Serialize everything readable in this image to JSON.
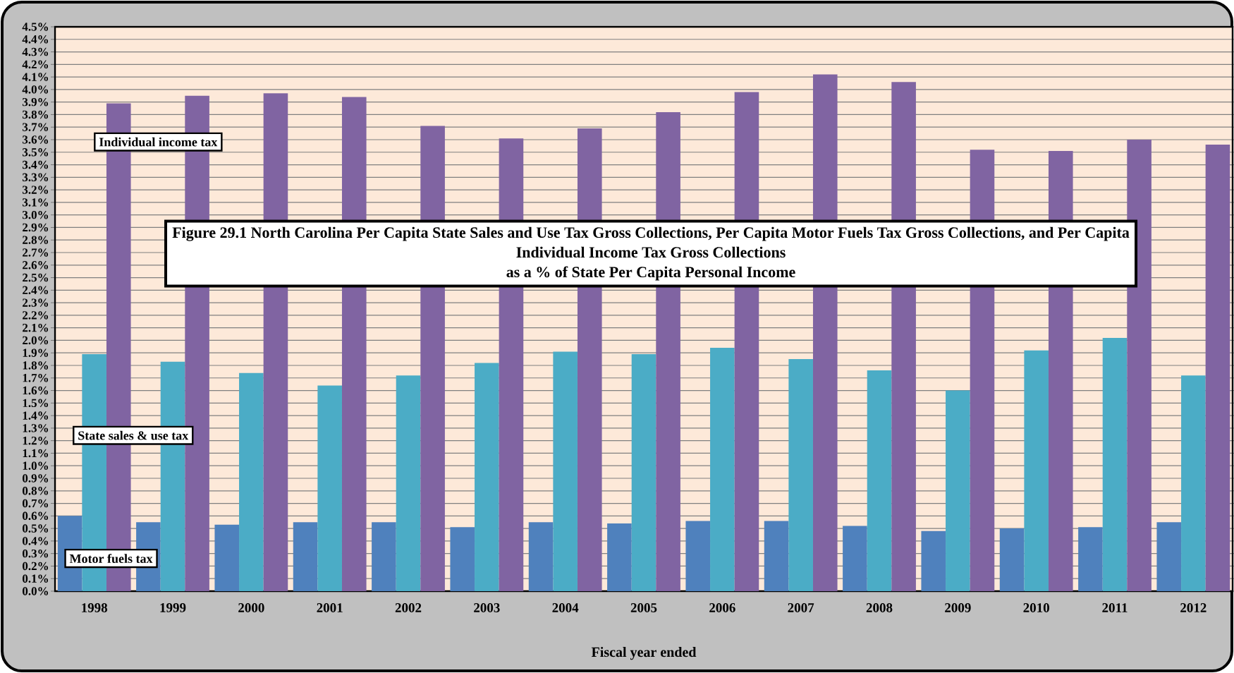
{
  "chart_data": {
    "type": "bar",
    "title": "Figure 29.1 North Carolina Per Capita State Sales and Use Tax Gross Collections, Per Capita Motor Fuels Tax Gross Collections, and Per Capita Individual Income Tax Gross Collections",
    "subtitle": "as a % of State Per Capita Personal Income",
    "xlabel": "Fiscal year ended",
    "categories": [
      "1998",
      "1999",
      "2000",
      "2001",
      "2002",
      "2003",
      "2004",
      "2005",
      "2006",
      "2007",
      "2008",
      "2009",
      "2010",
      "2011",
      "2012"
    ],
    "series": [
      {
        "name": "Motor fuels tax",
        "color": "#4f81bd",
        "values": [
          0.6,
          0.55,
          0.53,
          0.55,
          0.55,
          0.51,
          0.55,
          0.54,
          0.56,
          0.56,
          0.52,
          0.48,
          0.5,
          0.51,
          0.55
        ]
      },
      {
        "name": "State sales & use tax",
        "color": "#4bacc6",
        "values": [
          1.89,
          1.83,
          1.74,
          1.64,
          1.72,
          1.82,
          1.91,
          1.89,
          1.94,
          1.85,
          1.76,
          1.6,
          1.92,
          2.02,
          1.72
        ]
      },
      {
        "name": "Individual income tax",
        "color": "#8064a2",
        "values": [
          3.89,
          3.95,
          3.97,
          3.94,
          3.71,
          3.61,
          3.69,
          3.82,
          3.98,
          4.12,
          4.06,
          3.52,
          3.51,
          3.6,
          3.56
        ]
      }
    ],
    "ylim": [
      0,
      4.5
    ],
    "yticks": [
      {
        "value": 0,
        "label": "0.0%"
      },
      {
        "value": 0.1,
        "label": "0.1%"
      },
      {
        "value": 0.2,
        "label": "0.2%"
      },
      {
        "value": 0.3,
        "label": "0.3%"
      },
      {
        "value": 0.4,
        "label": "0.4%"
      },
      {
        "value": 0.5,
        "label": "0.5%"
      },
      {
        "value": 0.6,
        "label": "0.6%"
      },
      {
        "value": 0.7,
        "label": "0.7%"
      },
      {
        "value": 0.8,
        "label": "0.8%"
      },
      {
        "value": 0.9,
        "label": "0.9%"
      },
      {
        "value": 1.0,
        "label": "1.0%"
      },
      {
        "value": 1.1,
        "label": "1.1%"
      },
      {
        "value": 1.2,
        "label": "1.2%"
      },
      {
        "value": 1.3,
        "label": "1.3%"
      },
      {
        "value": 1.4,
        "label": "1.4%"
      },
      {
        "value": 1.5,
        "label": "1.5%"
      },
      {
        "value": 1.6,
        "label": "1.6%"
      },
      {
        "value": 1.7,
        "label": "1.7%"
      },
      {
        "value": 1.8,
        "label": "1.8%"
      },
      {
        "value": 1.9,
        "label": "1.9%"
      },
      {
        "value": 2.0,
        "label": "2.0%"
      },
      {
        "value": 2.1,
        "label": "2.1%"
      },
      {
        "value": 2.2,
        "label": "2.2%"
      },
      {
        "value": 2.3,
        "label": "2.3%"
      },
      {
        "value": 2.4,
        "label": "2.4%"
      },
      {
        "value": 2.5,
        "label": "2.5%"
      },
      {
        "value": 2.6,
        "label": "2.6%"
      },
      {
        "value": 2.7,
        "label": "2.7%"
      },
      {
        "value": 2.8,
        "label": "2.8%"
      },
      {
        "value": 2.9,
        "label": "2.9%"
      },
      {
        "value": 3.0,
        "label": "3.0%"
      },
      {
        "value": 3.1,
        "label": "3.1%"
      },
      {
        "value": 3.2,
        "label": "3.2%"
      },
      {
        "value": 3.3,
        "label": "3.3%"
      },
      {
        "value": 3.4,
        "label": "3.4%"
      },
      {
        "value": 3.5,
        "label": "3.5%"
      },
      {
        "value": 3.6,
        "label": "3.6%"
      },
      {
        "value": 3.7,
        "label": "3.7%"
      },
      {
        "value": 3.8,
        "label": "3.8%"
      },
      {
        "value": 3.9,
        "label": "3.9%"
      },
      {
        "value": 4.0,
        "label": "4.0%"
      },
      {
        "value": 4.1,
        "label": "4.1%"
      },
      {
        "value": 4.2,
        "label": "4.2%"
      },
      {
        "value": 4.3,
        "label": "4.3%"
      },
      {
        "value": 4.4,
        "label": "4.4%"
      },
      {
        "value": 4.5,
        "label": "4.5%"
      }
    ],
    "grid": "y"
  }
}
